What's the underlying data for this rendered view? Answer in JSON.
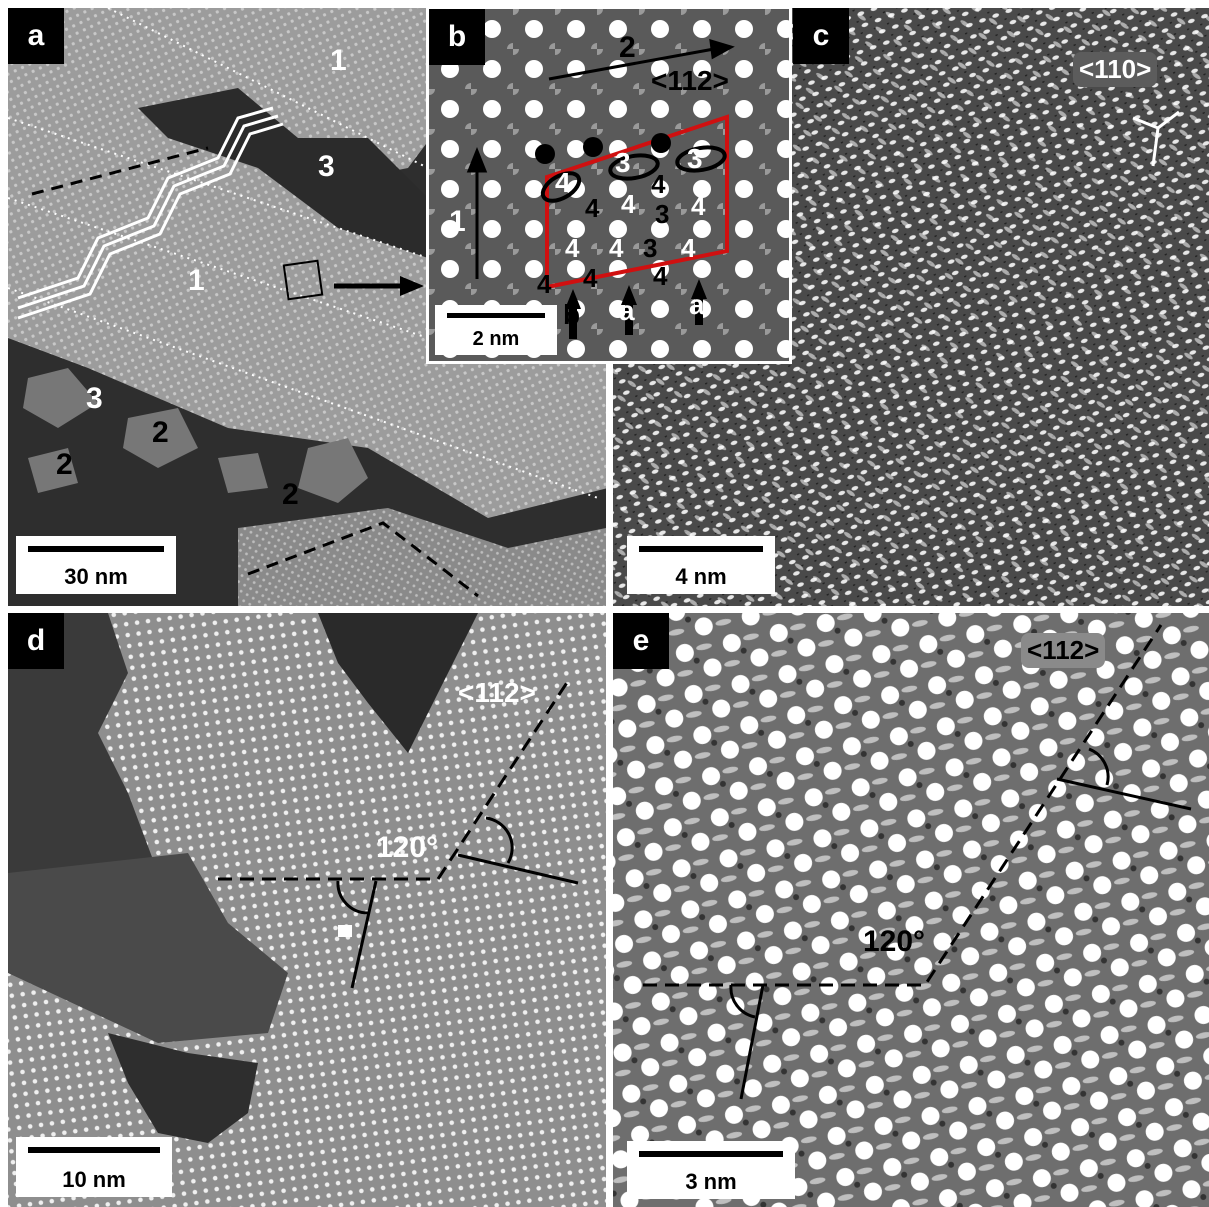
{
  "panels": {
    "a": {
      "label": "a",
      "scale": "30 nm",
      "domains": [
        "1",
        "3",
        "1",
        "3",
        "2",
        "2",
        "2"
      ]
    },
    "b": {
      "label": "b",
      "scale": "2 nm",
      "direction": "<112>",
      "arrow_labels": [
        "2",
        "1"
      ],
      "site_numbers": [
        "3",
        "3",
        "4",
        "4",
        "4",
        "4",
        "3",
        "4",
        "4",
        "4",
        "3",
        "4",
        "4",
        "4",
        "4"
      ],
      "row_markers": [
        "b",
        "a",
        "a"
      ]
    },
    "c": {
      "label": "c",
      "scale": "4 nm",
      "direction": "<110>"
    },
    "d": {
      "label": "d",
      "scale": "10 nm",
      "direction": "<112>",
      "angle": "120°"
    },
    "e": {
      "label": "e",
      "scale": "3 nm",
      "direction": "<112>",
      "angle": "120°"
    }
  },
  "colors": {
    "unit_cell": "#d01010",
    "annotation_dark": "#000000",
    "annotation_light": "#ffffff"
  }
}
